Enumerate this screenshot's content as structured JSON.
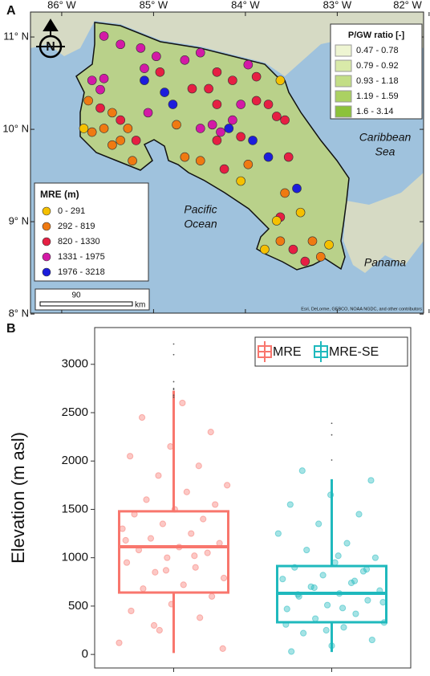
{
  "panel_a": {
    "label": "A",
    "xlim": [
      -86.34,
      -82.06
    ],
    "ylim": [
      8.01,
      11.27
    ],
    "xticks": [
      {
        "value": -86,
        "label": "86° W"
      },
      {
        "value": -85,
        "label": "85° W"
      },
      {
        "value": -84,
        "label": "84° W"
      },
      {
        "value": -83,
        "label": "83° W"
      },
      {
        "value": -82,
        "label": "82° W"
      }
    ],
    "yticks": [
      {
        "value": 11,
        "label": "11° N"
      },
      {
        "value": 10,
        "label": "10° N"
      },
      {
        "value": 9,
        "label": "9° N"
      },
      {
        "value": 8,
        "label": "8° N"
      }
    ],
    "north": "N",
    "places": {
      "caribbean": [
        "Caribbean",
        "Sea"
      ],
      "pacific": [
        "Pacific",
        "Ocean"
      ],
      "panama": "Panama"
    },
    "scale_value": "90",
    "scale_unit": "km",
    "credit": "Esri, DeLorme, GEBCO, NOAA NGDC, and other contributors",
    "pgw_legend": {
      "title": "P/GW ratio [-]",
      "items": [
        {
          "label": "0.47 - 0.78",
          "color": "#eef5d2"
        },
        {
          "label": "0.79 - 0.92",
          "color": "#d9eaa9"
        },
        {
          "label": "0.93 - 1.18",
          "color": "#c3de86"
        },
        {
          "label": "1.19 - 1.59",
          "color": "#abd162"
        },
        {
          "label": "1.6 - 3.14",
          "color": "#8cc23a"
        }
      ]
    },
    "mre_legend": {
      "title": "MRE (m)",
      "items": [
        {
          "label": "0 - 291",
          "color": "#f5c000"
        },
        {
          "label": "292 - 819",
          "color": "#ef7a12"
        },
        {
          "label": "820 - 1330",
          "color": "#e61f43"
        },
        {
          "label": "1331 - 1975",
          "color": "#d31aa6"
        },
        {
          "label": "1976 - 3218",
          "color": "#1c1ddc"
        }
      ]
    },
    "points": [
      {
        "lon": -85.54,
        "lat": 11.01,
        "class": 3
      },
      {
        "lon": -85.36,
        "lat": 10.92,
        "class": 3
      },
      {
        "lon": -85.14,
        "lat": 10.88,
        "class": 3
      },
      {
        "lon": -84.97,
        "lat": 10.79,
        "class": 3
      },
      {
        "lon": -84.66,
        "lat": 10.75,
        "class": 3
      },
      {
        "lon": -84.49,
        "lat": 10.83,
        "class": 3
      },
      {
        "lon": -84.31,
        "lat": 10.62,
        "class": 2
      },
      {
        "lon": -84.14,
        "lat": 10.53,
        "class": 2
      },
      {
        "lon": -83.97,
        "lat": 10.7,
        "class": 3
      },
      {
        "lon": -83.88,
        "lat": 10.57,
        "class": 2
      },
      {
        "lon": -84.58,
        "lat": 10.44,
        "class": 2
      },
      {
        "lon": -84.4,
        "lat": 10.44,
        "class": 2
      },
      {
        "lon": -84.88,
        "lat": 10.4,
        "class": 4
      },
      {
        "lon": -84.79,
        "lat": 10.27,
        "class": 4
      },
      {
        "lon": -85.1,
        "lat": 10.53,
        "class": 4
      },
      {
        "lon": -85.67,
        "lat": 10.53,
        "class": 3
      },
      {
        "lon": -85.54,
        "lat": 10.55,
        "class": 3
      },
      {
        "lon": -85.58,
        "lat": 10.43,
        "class": 3
      },
      {
        "lon": -85.71,
        "lat": 10.31,
        "class": 1
      },
      {
        "lon": -85.58,
        "lat": 10.23,
        "class": 2
      },
      {
        "lon": -85.45,
        "lat": 10.18,
        "class": 1
      },
      {
        "lon": -85.36,
        "lat": 10.1,
        "class": 2
      },
      {
        "lon": -85.28,
        "lat": 10.01,
        "class": 1
      },
      {
        "lon": -85.19,
        "lat": 9.88,
        "class": 2
      },
      {
        "lon": -85.36,
        "lat": 9.88,
        "class": 1
      },
      {
        "lon": -85.54,
        "lat": 10.01,
        "class": 1
      },
      {
        "lon": -85.67,
        "lat": 9.97,
        "class": 1
      },
      {
        "lon": -85.76,
        "lat": 10.01,
        "class": 0
      },
      {
        "lon": -85.45,
        "lat": 9.83,
        "class": 1
      },
      {
        "lon": -85.23,
        "lat": 9.66,
        "class": 1
      },
      {
        "lon": -84.66,
        "lat": 9.7,
        "class": 1
      },
      {
        "lon": -84.49,
        "lat": 9.66,
        "class": 1
      },
      {
        "lon": -84.49,
        "lat": 10.01,
        "class": 3
      },
      {
        "lon": -84.36,
        "lat": 10.05,
        "class": 3
      },
      {
        "lon": -84.27,
        "lat": 9.97,
        "class": 3
      },
      {
        "lon": -84.18,
        "lat": 10.01,
        "class": 4
      },
      {
        "lon": -84.14,
        "lat": 10.1,
        "class": 3
      },
      {
        "lon": -84.31,
        "lat": 9.88,
        "class": 2
      },
      {
        "lon": -84.05,
        "lat": 9.92,
        "class": 2
      },
      {
        "lon": -83.92,
        "lat": 9.88,
        "class": 4
      },
      {
        "lon": -83.88,
        "lat": 10.31,
        "class": 2
      },
      {
        "lon": -83.75,
        "lat": 10.27,
        "class": 2
      },
      {
        "lon": -83.62,
        "lat": 10.53,
        "class": 0
      },
      {
        "lon": -83.66,
        "lat": 10.14,
        "class": 2
      },
      {
        "lon": -83.57,
        "lat": 10.1,
        "class": 2
      },
      {
        "lon": -83.75,
        "lat": 9.7,
        "class": 4
      },
      {
        "lon": -83.53,
        "lat": 9.7,
        "class": 2
      },
      {
        "lon": -83.44,
        "lat": 9.36,
        "class": 4
      },
      {
        "lon": -83.57,
        "lat": 9.31,
        "class": 1
      },
      {
        "lon": -83.62,
        "lat": 9.05,
        "class": 2
      },
      {
        "lon": -83.4,
        "lat": 9.1,
        "class": 0
      },
      {
        "lon": -83.66,
        "lat": 9.01,
        "class": 0
      },
      {
        "lon": -83.62,
        "lat": 8.79,
        "class": 1
      },
      {
        "lon": -83.79,
        "lat": 8.7,
        "class": 0
      },
      {
        "lon": -83.48,
        "lat": 8.7,
        "class": 2
      },
      {
        "lon": -83.27,
        "lat": 8.79,
        "class": 1
      },
      {
        "lon": -83.09,
        "lat": 8.75,
        "class": 0
      },
      {
        "lon": -83.18,
        "lat": 8.62,
        "class": 1
      },
      {
        "lon": -83.35,
        "lat": 8.57,
        "class": 2
      },
      {
        "lon": -84.05,
        "lat": 9.44,
        "class": 0
      },
      {
        "lon": -84.23,
        "lat": 9.57,
        "class": 2
      },
      {
        "lon": -83.97,
        "lat": 9.62,
        "class": 1
      },
      {
        "lon": -84.75,
        "lat": 10.05,
        "class": 1
      },
      {
        "lon": -85.06,
        "lat": 10.18,
        "class": 3
      },
      {
        "lon": -84.93,
        "lat": 10.62,
        "class": 2
      },
      {
        "lon": -84.31,
        "lat": 10.27,
        "class": 2
      },
      {
        "lon": -85.1,
        "lat": 10.66,
        "class": 3
      },
      {
        "lon": -84.05,
        "lat": 10.27,
        "class": 3
      }
    ]
  },
  "chart_data": {
    "type": "box",
    "label": "B",
    "ylabel": "Elevation (m asl)",
    "ylim": [
      -140,
      3380
    ],
    "yticks": [
      0,
      500,
      1000,
      1500,
      2000,
      2500,
      3000
    ],
    "series": [
      {
        "name": "MRE",
        "color": "#f8766d",
        "q1": 640,
        "median": 1114,
        "q3": 1480,
        "whisker_low": 15,
        "whisker_high": 2727,
        "outliers": [
          3210,
          3100,
          2820,
          2750,
          2740,
          2680,
          2660
        ],
        "points": [
          120,
          250,
          380,
          450,
          520,
          600,
          680,
          720,
          790,
          850,
          900,
          950,
          1000,
          1050,
          1080,
          1110,
          1150,
          1200,
          1250,
          1300,
          1350,
          1400,
          1450,
          1500,
          1550,
          1600,
          1680,
          1750,
          1850,
          1950,
          2050,
          2150,
          2300,
          2450,
          2600,
          60,
          300,
          1020,
          1180,
          870
        ]
      },
      {
        "name": "MRE-SE",
        "color": "#1fb9bd",
        "q1": 333,
        "median": 632,
        "q3": 914,
        "whisker_low": 25,
        "whisker_high": 1812,
        "outliers": [
          2390,
          2270,
          2010
        ],
        "points": [
          30,
          90,
          150,
          220,
          280,
          330,
          370,
          420,
          470,
          510,
          560,
          600,
          630,
          660,
          700,
          740,
          780,
          820,
          860,
          900,
          950,
          1000,
          1080,
          1150,
          1250,
          1350,
          1450,
          1550,
          1650,
          1800,
          1900,
          480,
          540,
          690,
          760,
          310,
          250,
          880,
          620,
          1020
        ]
      }
    ]
  }
}
